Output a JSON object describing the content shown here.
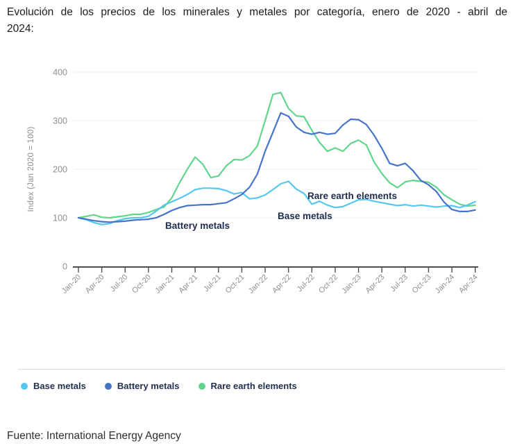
{
  "header": {
    "title_line1": "Evolución de los precios de los minerales y metales por categoría, enero de 2020 - abril de",
    "title_line2": "2024:"
  },
  "source": "Fuente: International Energy Agency",
  "legend": [
    {
      "label": "Base metals",
      "color": "#55c6f0"
    },
    {
      "label": "Battery metals",
      "color": "#4673c8"
    },
    {
      "label": "Rare earth elements",
      "color": "#5fd68b"
    }
  ],
  "chart_data": {
    "type": "line",
    "title": "",
    "xlabel": "",
    "ylabel": "Index (Jan 2020 = 100)",
    "ylim": [
      0,
      400
    ],
    "yticks": [
      0,
      100,
      200,
      300,
      400
    ],
    "grid": true,
    "legend_position": "bottom",
    "x_tick_labels": [
      "Jan-20",
      "Apr-20",
      "Jul-20",
      "Oct-20",
      "Jan-21",
      "Apr-21",
      "Jul-21",
      "Oct-21",
      "Jan-22",
      "Apr-22",
      "Jul-22",
      "Oct-22",
      "Jan-23",
      "Apr-23",
      "Jul-23",
      "Oct-23",
      "Jan-24",
      "Apr-24"
    ],
    "months_total": 52,
    "x_unit": "month (Jan-2020 to Apr-2024)",
    "draw_order": [
      2,
      0,
      1
    ],
    "series": [
      {
        "name": "Base metals",
        "color": "#55c6f0",
        "values": [
          100,
          96,
          90,
          86,
          88,
          94,
          98,
          100,
          100,
          103,
          114,
          126,
          133,
          140,
          148,
          158,
          161,
          161,
          160,
          156,
          149,
          152,
          139,
          141,
          147,
          158,
          170,
          175,
          159,
          150,
          128,
          134,
          126,
          121,
          123,
          130,
          137,
          138,
          134,
          131,
          128,
          125,
          127,
          124,
          126,
          124,
          122,
          124,
          125,
          121,
          126,
          133
        ]
      },
      {
        "name": "Battery metals",
        "color": "#4673c8",
        "values": [
          100,
          97,
          94,
          92,
          91,
          92,
          93,
          95,
          96,
          97,
          100,
          107,
          115,
          121,
          125,
          126,
          127,
          127,
          129,
          131,
          139,
          148,
          163,
          190,
          237,
          276,
          316,
          309,
          287,
          276,
          272,
          276,
          272,
          274,
          291,
          303,
          302,
          292,
          270,
          243,
          212,
          207,
          212,
          197,
          177,
          168,
          154,
          132,
          117,
          113,
          113,
          116
        ]
      },
      {
        "name": "Rare earth elements",
        "color": "#5fd68b",
        "values": [
          100,
          103,
          106,
          101,
          100,
          102,
          104,
          107,
          107,
          111,
          117,
          122,
          141,
          172,
          200,
          225,
          210,
          183,
          186,
          207,
          220,
          219,
          228,
          248,
          300,
          354,
          358,
          325,
          310,
          308,
          280,
          255,
          237,
          244,
          237,
          253,
          260,
          250,
          215,
          191,
          172,
          162,
          174,
          177,
          175,
          173,
          163,
          147,
          137,
          128,
          124,
          126
        ]
      }
    ],
    "annotations": [
      {
        "text": "Battery metals",
        "x": 238,
        "y": 330
      },
      {
        "text": "Base metals",
        "x": 400,
        "y": 316
      },
      {
        "text": "Rare earth elements",
        "x": 443,
        "y": 287
      }
    ]
  }
}
